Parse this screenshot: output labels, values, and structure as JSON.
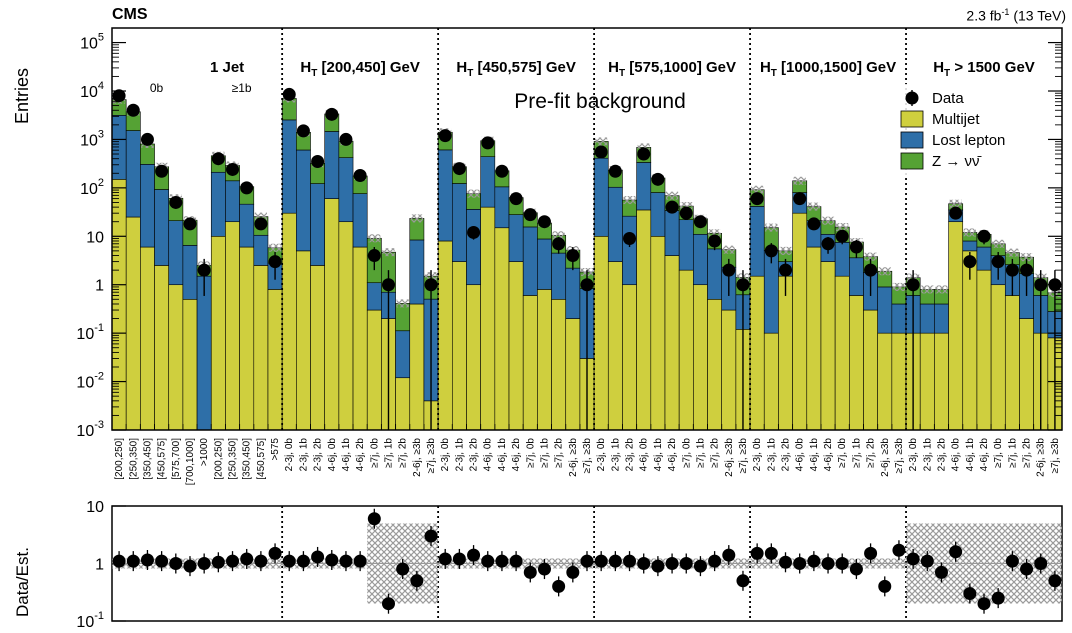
{
  "header": {
    "experiment": "CMS",
    "lumi_value": "2.3 fb",
    "lumi_exp": "-1",
    "lumi_energy": " (13 TeV)"
  },
  "chart_data": {
    "type": "bar",
    "stacked": true,
    "log_scale": true,
    "annotation": "Pre-fit background",
    "ylabel": "Entries",
    "ylim": [
      0.001,
      200000
    ],
    "y_ticks": [
      {
        "label": "10",
        "exp": "-3",
        "value": 0.001
      },
      {
        "label": "10",
        "exp": "-2",
        "value": 0.01
      },
      {
        "label": "10",
        "exp": "-1",
        "value": 0.1
      },
      {
        "label": "1",
        "exp": "",
        "value": 1
      },
      {
        "label": "10",
        "exp": "",
        "value": 10
      },
      {
        "label": "10",
        "exp": "2",
        "value": 100
      },
      {
        "label": "10",
        "exp": "3",
        "value": 1000
      },
      {
        "label": "10",
        "exp": "4",
        "value": 10000
      },
      {
        "label": "10",
        "exp": "5",
        "value": 100000
      }
    ],
    "regions": [
      {
        "label": "1 Jet",
        "sub": ""
      },
      {
        "label": "H",
        "sub": "T",
        "rest": " [200,450] GeV"
      },
      {
        "label": "H",
        "sub": "T",
        "rest": " [450,575] GeV"
      },
      {
        "label": "H",
        "sub": "T",
        "rest": " [575,1000] GeV"
      },
      {
        "label": "H",
        "sub": "T",
        "rest": " [1000,1500] GeV"
      },
      {
        "label": "H",
        "sub": "T",
        "rest": " > 1500 GeV"
      }
    ],
    "sub_labels": [
      "0b",
      "≥1b"
    ],
    "categories": [
      "[200,250]",
      "[250,350]",
      "[350,450]",
      "[450,575]",
      "[575,700]",
      "[700,1000]",
      ">1000",
      "[200,250]",
      "[250,350]",
      "[350,450]",
      "[450,575]",
      ">575",
      "2-3j, 0b",
      "2-3j, 1b",
      "2-3j, 2b",
      "4-6j, 0b",
      "4-6j, 1b",
      "4-6j, 2b",
      "≥7j, 0b",
      "≥7j, 1b",
      "≥7j, 2b",
      "2-6j, ≥3b",
      "≥7j, ≥3b",
      "2-3j, 0b",
      "2-3j, 1b",
      "2-3j, 2b",
      "4-6j, 0b",
      "4-6j, 1b",
      "4-6j, 2b",
      "≥7j, 0b",
      "≥7j, 1b",
      "≥7j, 2b",
      "2-6j, ≥3b",
      "≥7j, ≥3b",
      "2-3j, 0b",
      "2-3j, 1b",
      "2-3j, 2b",
      "4-6j, 0b",
      "4-6j, 1b",
      "4-6j, 2b",
      "≥7j, 0b",
      "≥7j, 1b",
      "≥7j, 2b",
      "2-6j, ≥3b",
      "≥7j, ≥3b",
      "2-3j, 0b",
      "2-3j, 1b",
      "2-3j, 2b",
      "4-6j, 0b",
      "4-6j, 1b",
      "4-6j, 2b",
      "≥7j, 0b",
      "≥7j, 1b",
      "≥7j, 2b",
      "2-6j, ≥3b",
      "≥7j, ≥3b",
      "2-3j, 0b",
      "2-3j, 1b",
      "2-3j, 2b",
      "4-6j, 0b",
      "4-6j, 1b",
      "4-6j, 2b",
      "≥7j, 0b",
      "≥7j, 1b",
      "≥7j, 2b",
      "2-6j, ≥3b",
      "≥7j, ≥3b"
    ],
    "series": [
      {
        "name": "Multijet",
        "color": "#cfcf3e",
        "values": [
          150,
          25,
          6,
          2.5,
          1,
          0.5,
          0.001,
          10,
          20,
          6,
          2.5,
          0.8,
          30,
          5,
          2.5,
          60,
          20,
          6,
          0.3,
          0.2,
          0.012,
          0.4,
          0.004,
          8,
          3,
          1,
          40,
          15,
          3,
          0.6,
          0.8,
          0.5,
          0.2,
          0.03,
          10,
          3,
          1,
          35,
          10,
          4,
          2,
          1,
          0.5,
          0.3,
          0.12,
          1.5,
          0.1,
          1.5,
          30,
          6,
          3,
          1.5,
          0.6,
          0.3,
          0.1,
          0.1,
          0.1,
          0.1,
          0.1,
          20,
          5,
          2,
          1,
          0.6,
          0.2,
          0.1,
          0.08
        ]
      },
      {
        "name": "Lost lepton",
        "color": "#2e6fa8",
        "values": [
          3000,
          1500,
          300,
          90,
          20,
          6,
          1.5,
          200,
          120,
          40,
          8,
          2,
          2500,
          600,
          120,
          1400,
          400,
          70,
          0.8,
          0.5,
          0.1,
          8,
          0.5,
          600,
          120,
          35,
          400,
          90,
          25,
          15,
          8,
          4,
          2,
          0.8,
          400,
          100,
          25,
          300,
          70,
          30,
          20,
          10,
          5,
          2,
          0.5,
          40,
          5,
          1.5,
          50,
          15,
          8,
          6,
          3,
          1.5,
          0.8,
          0.3,
          0.5,
          0.3,
          0.3,
          15,
          3,
          4,
          3,
          2,
          1.5,
          0.5,
          0.2
        ]
      },
      {
        "name": "Z → νν̄",
        "color": "#55a234",
        "values": [
          3500,
          2200,
          500,
          180,
          40,
          15,
          1,
          250,
          150,
          60,
          15,
          3,
          4500,
          800,
          200,
          1900,
          500,
          100,
          8,
          4,
          0.3,
          15,
          1,
          800,
          150,
          40,
          500,
          120,
          35,
          15,
          10,
          6,
          3,
          1,
          500,
          130,
          30,
          350,
          80,
          35,
          20,
          12,
          6,
          3,
          0.8,
          50,
          10,
          2,
          60,
          20,
          10,
          8,
          4,
          2,
          1,
          0.5,
          0.8,
          0.4,
          0.4,
          12,
          4,
          5,
          3,
          2,
          2,
          0.8,
          0.4
        ]
      },
      {
        "name": "Data",
        "color": "#000000",
        "values": [
          8000,
          4000,
          1000,
          220,
          50,
          18,
          2,
          400,
          240,
          100,
          18,
          3,
          8500,
          1500,
          350,
          3300,
          1000,
          180,
          4,
          1,
          null,
          null,
          1,
          1200,
          250,
          12,
          850,
          220,
          60,
          28,
          20,
          7,
          4,
          1,
          550,
          220,
          9,
          500,
          150,
          40,
          30,
          20,
          8,
          2,
          1,
          60,
          5,
          2,
          60,
          18,
          7,
          10,
          6,
          2,
          null,
          null,
          1,
          null,
          null,
          30,
          3,
          10,
          3,
          2,
          2,
          1,
          1
        ]
      }
    ],
    "ratio": {
      "ylabel": "Data/Est.",
      "y_ticks": [
        {
          "label": "10",
          "exp": "-1",
          "value": 0.1
        },
        {
          "label": "1",
          "exp": "",
          "value": 1
        },
        {
          "label": "10",
          "exp": "",
          "value": 10
        }
      ],
      "values": [
        1.1,
        1.1,
        1.15,
        1.1,
        1.0,
        0.9,
        1.0,
        1.05,
        1.1,
        1.2,
        1.1,
        1.5,
        1.1,
        1.1,
        1.3,
        1.15,
        1.1,
        1.1,
        6,
        0.2,
        0.8,
        0.5,
        3,
        1.2,
        1.2,
        1.4,
        1.1,
        1.1,
        1.1,
        0.7,
        0.8,
        0.4,
        0.7,
        1.1,
        1.1,
        1.1,
        1.1,
        1.0,
        0.9,
        1.0,
        1.0,
        0.9,
        1.1,
        1.4,
        0.5,
        1.5,
        1.5,
        1.05,
        1.0,
        1.1,
        1.0,
        1.0,
        0.8,
        1.5,
        0.4,
        1.7,
        1.2,
        1.1,
        0.7,
        1.6,
        0.3,
        0.2,
        0.25,
        1.1,
        0.8,
        1.0,
        0.5
      ]
    },
    "legend_position": "top-right"
  }
}
